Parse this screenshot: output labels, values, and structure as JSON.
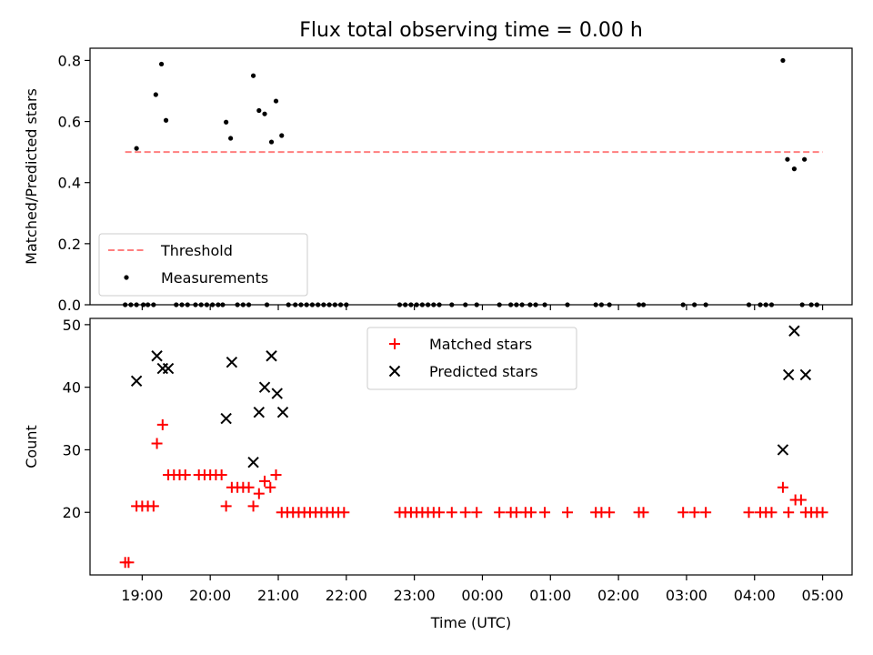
{
  "title": "Flux total observing time = 0.00 h",
  "chart_data": [
    {
      "type": "scatter",
      "ylabel": "Matched/Predicted stars",
      "ylim": [
        0,
        0.84
      ],
      "yticks": [
        0.0,
        0.2,
        0.4,
        0.6,
        0.8
      ],
      "ytick_labels": [
        "0.0",
        "0.2",
        "0.4",
        "0.6",
        "0.8"
      ],
      "xlim": [
        "18:14",
        "05:26"
      ],
      "grid": false,
      "legend_position": "lower-left",
      "legend": [
        {
          "label": "Threshold",
          "style": "dashed-line",
          "color": "#ff7f7f"
        },
        {
          "label": "Measurements",
          "style": "dot",
          "color": "#000000"
        }
      ],
      "threshold": {
        "y": 0.5,
        "x_start": "18:45",
        "x_end": "05:00"
      },
      "series": [
        {
          "name": "Measurements",
          "color": "#000000",
          "points": [
            [
              "18:45",
              0
            ],
            [
              "18:50",
              0
            ],
            [
              "18:55",
              0
            ],
            [
              "19:01",
              0
            ],
            [
              "19:05",
              0
            ],
            [
              "19:10",
              0
            ],
            [
              "19:30",
              0
            ],
            [
              "19:35",
              0
            ],
            [
              "19:40",
              0
            ],
            [
              "19:47",
              0
            ],
            [
              "19:52",
              0
            ],
            [
              "19:57",
              0
            ],
            [
              "20:02",
              0
            ],
            [
              "20:07",
              0
            ],
            [
              "20:11",
              0
            ],
            [
              "20:24",
              0
            ],
            [
              "20:29",
              0
            ],
            [
              "20:34",
              0
            ],
            [
              "20:50",
              0
            ],
            [
              "21:09",
              0
            ],
            [
              "21:15",
              0
            ],
            [
              "21:20",
              0
            ],
            [
              "21:25",
              0
            ],
            [
              "21:30",
              0
            ],
            [
              "21:35",
              0
            ],
            [
              "21:40",
              0
            ],
            [
              "21:45",
              0
            ],
            [
              "21:50",
              0
            ],
            [
              "21:55",
              0
            ],
            [
              "22:00",
              0
            ],
            [
              "22:47",
              0
            ],
            [
              "22:52",
              0
            ],
            [
              "22:57",
              0
            ],
            [
              "23:02",
              0
            ],
            [
              "23:07",
              0
            ],
            [
              "23:12",
              0
            ],
            [
              "23:17",
              0
            ],
            [
              "23:22",
              0
            ],
            [
              "23:33",
              0
            ],
            [
              "23:45",
              0
            ],
            [
              "23:55",
              0
            ],
            [
              "00:15",
              0
            ],
            [
              "00:25",
              0
            ],
            [
              "00:30",
              0
            ],
            [
              "00:35",
              0
            ],
            [
              "00:42",
              0
            ],
            [
              "00:47",
              0
            ],
            [
              "00:55",
              0
            ],
            [
              "01:15",
              0
            ],
            [
              "01:40",
              0
            ],
            [
              "01:45",
              0
            ],
            [
              "01:52",
              0
            ],
            [
              "02:18",
              0
            ],
            [
              "02:22",
              0
            ],
            [
              "02:57",
              0
            ],
            [
              "03:07",
              0
            ],
            [
              "03:17",
              0
            ],
            [
              "03:55",
              0
            ],
            [
              "04:05",
              0
            ],
            [
              "04:10",
              0
            ],
            [
              "04:15",
              0
            ],
            [
              "04:42",
              0
            ],
            [
              "04:50",
              0
            ],
            [
              "04:55",
              0
            ],
            [
              "18:55",
              0.512
            ],
            [
              "19:12",
              0.688
            ],
            [
              "19:17",
              0.788
            ],
            [
              "19:21",
              0.604
            ],
            [
              "20:14",
              0.598
            ],
            [
              "20:18",
              0.545
            ],
            [
              "20:38",
              0.75
            ],
            [
              "20:43",
              0.636
            ],
            [
              "20:48",
              0.625
            ],
            [
              "20:54",
              0.533
            ],
            [
              "20:58",
              0.667
            ],
            [
              "21:03",
              0.554
            ],
            [
              "04:25",
              0.8
            ],
            [
              "04:29",
              0.476
            ],
            [
              "04:35",
              0.445
            ],
            [
              "04:44",
              0.476
            ]
          ]
        }
      ]
    },
    {
      "type": "scatter",
      "ylabel": "Count",
      "xlabel": "Time (UTC)",
      "ylim": [
        10,
        51
      ],
      "yticks": [
        20,
        30,
        40,
        50
      ],
      "ytick_labels": [
        "20",
        "30",
        "40",
        "50"
      ],
      "xlim": [
        "18:14",
        "05:26"
      ],
      "xticks": [
        "19:00",
        "20:00",
        "21:00",
        "22:00",
        "23:00",
        "00:00",
        "01:00",
        "02:00",
        "03:00",
        "04:00",
        "05:00"
      ],
      "xtick_labels": [
        "19:00",
        "20:00",
        "21:00",
        "22:00",
        "23:00",
        "00:00",
        "01:00",
        "02:00",
        "03:00",
        "04:00",
        "05:00"
      ],
      "grid": false,
      "legend_position": "top-center",
      "legend": [
        {
          "label": "Matched stars",
          "style": "plus",
          "color": "#ff0000"
        },
        {
          "label": "Predicted stars",
          "style": "x",
          "color": "#000000"
        }
      ],
      "series": [
        {
          "name": "Matched stars",
          "color": "#ff0000",
          "points": [
            [
              "18:45",
              12
            ],
            [
              "18:48",
              12
            ],
            [
              "18:55",
              21
            ],
            [
              "19:00",
              21
            ],
            [
              "19:05",
              21
            ],
            [
              "19:10",
              21
            ],
            [
              "19:13",
              31
            ],
            [
              "19:18",
              34
            ],
            [
              "19:23",
              26
            ],
            [
              "19:28",
              26
            ],
            [
              "19:33",
              26
            ],
            [
              "19:38",
              26
            ],
            [
              "19:50",
              26
            ],
            [
              "19:55",
              26
            ],
            [
              "20:00",
              26
            ],
            [
              "20:05",
              26
            ],
            [
              "20:10",
              26
            ],
            [
              "20:14",
              21
            ],
            [
              "20:19",
              24
            ],
            [
              "20:24",
              24
            ],
            [
              "20:29",
              24
            ],
            [
              "20:34",
              24
            ],
            [
              "20:38",
              21
            ],
            [
              "20:43",
              23
            ],
            [
              "20:48",
              25
            ],
            [
              "20:53",
              24
            ],
            [
              "20:58",
              26
            ],
            [
              "21:03",
              20
            ],
            [
              "21:08",
              20
            ],
            [
              "21:13",
              20
            ],
            [
              "21:18",
              20
            ],
            [
              "21:23",
              20
            ],
            [
              "21:28",
              20
            ],
            [
              "21:33",
              20
            ],
            [
              "21:38",
              20
            ],
            [
              "21:43",
              20
            ],
            [
              "21:48",
              20
            ],
            [
              "21:53",
              20
            ],
            [
              "21:58",
              20
            ],
            [
              "22:47",
              20
            ],
            [
              "22:52",
              20
            ],
            [
              "22:57",
              20
            ],
            [
              "23:02",
              20
            ],
            [
              "23:07",
              20
            ],
            [
              "23:12",
              20
            ],
            [
              "23:17",
              20
            ],
            [
              "23:22",
              20
            ],
            [
              "23:33",
              20
            ],
            [
              "23:45",
              20
            ],
            [
              "23:55",
              20
            ],
            [
              "00:15",
              20
            ],
            [
              "00:25",
              20
            ],
            [
              "00:30",
              20
            ],
            [
              "00:38",
              20
            ],
            [
              "00:43",
              20
            ],
            [
              "00:55",
              20
            ],
            [
              "01:15",
              20
            ],
            [
              "01:40",
              20
            ],
            [
              "01:45",
              20
            ],
            [
              "01:52",
              20
            ],
            [
              "02:18",
              20
            ],
            [
              "02:22",
              20
            ],
            [
              "02:57",
              20
            ],
            [
              "03:07",
              20
            ],
            [
              "03:17",
              20
            ],
            [
              "03:55",
              20
            ],
            [
              "04:05",
              20
            ],
            [
              "04:10",
              20
            ],
            [
              "04:15",
              20
            ],
            [
              "04:25",
              24
            ],
            [
              "04:30",
              20
            ],
            [
              "04:36",
              22
            ],
            [
              "04:41",
              22
            ],
            [
              "04:45",
              20
            ],
            [
              "04:50",
              20
            ],
            [
              "04:55",
              20
            ],
            [
              "05:00",
              20
            ]
          ]
        },
        {
          "name": "Predicted stars",
          "color": "#000000",
          "points": [
            [
              "18:55",
              41
            ],
            [
              "19:13",
              45
            ],
            [
              "19:18",
              43
            ],
            [
              "19:23",
              43
            ],
            [
              "20:14",
              35
            ],
            [
              "20:19",
              44
            ],
            [
              "20:38",
              28
            ],
            [
              "20:43",
              36
            ],
            [
              "20:48",
              40
            ],
            [
              "20:54",
              45
            ],
            [
              "20:59",
              39
            ],
            [
              "21:04",
              36
            ],
            [
              "04:25",
              30
            ],
            [
              "04:30",
              42
            ],
            [
              "04:35",
              49
            ],
            [
              "04:45",
              42
            ]
          ]
        }
      ]
    }
  ]
}
